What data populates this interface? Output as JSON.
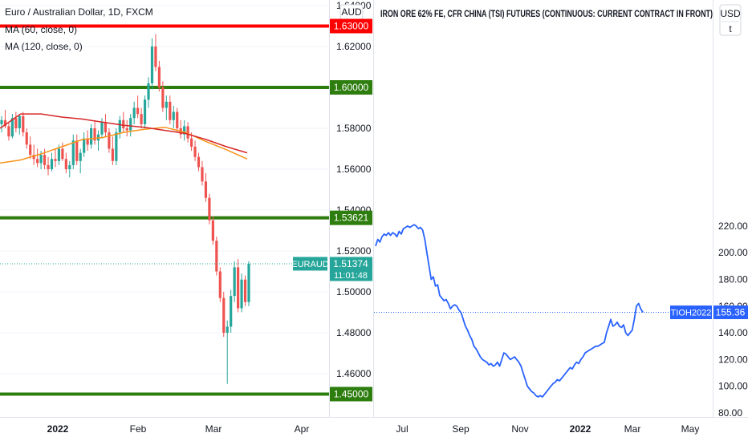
{
  "chart_data": [
    {
      "type": "candlestick",
      "title": "Euro / Australian Dollar, 1D, FXCM",
      "indicators": [
        "MA (60, close, 0)",
        "MA (120, close, 0)"
      ],
      "currency": "AUD",
      "ylim": [
        1.447,
        1.6415
      ],
      "y_ticks": [
        "1.46000",
        "1.48000",
        "1.50000",
        "1.52000",
        "1.54000",
        "1.56000",
        "1.58000",
        "1.60000",
        "1.62000",
        "1.64000"
      ],
      "x_ticks": [
        "2022",
        "Feb",
        "Mar",
        "Apr"
      ],
      "symbol": "EURAUD",
      "last_price": "1.51374",
      "countdown": "11:01:48",
      "levels": [
        {
          "value": 1.63,
          "label": "1.63000",
          "color": "#ff0000"
        },
        {
          "value": 1.6,
          "label": "1.60000",
          "color": "#2e7d0f"
        },
        {
          "value": 1.53621,
          "label": "1.53621",
          "color": "#2e7d0f"
        },
        {
          "value": 1.45,
          "label": "1.45000",
          "color": "#2e7d0f"
        }
      ],
      "series": [
        {
          "name": "MA (60, close, 0)",
          "color": "#f7931a",
          "values": [
            1.563,
            1.5645,
            1.5675,
            1.571,
            1.5745,
            1.5755,
            1.578,
            1.5795,
            1.5805,
            1.578,
            1.5735,
            1.5695,
            1.565
          ]
        },
        {
          "name": "MA (120, close, 0)",
          "color": "#d62728",
          "values": [
            1.58,
            1.587,
            1.587,
            1.5855,
            1.5845,
            1.583,
            1.5815,
            1.5805,
            1.579,
            1.5775,
            1.5745,
            1.571,
            1.568
          ]
        }
      ],
      "candles": [
        [
          1.582,
          1.586,
          1.578,
          1.584
        ],
        [
          1.584,
          1.589,
          1.58,
          1.581
        ],
        [
          1.581,
          1.583,
          1.574,
          1.576
        ],
        [
          1.576,
          1.587,
          1.575,
          1.585
        ],
        [
          1.585,
          1.588,
          1.578,
          1.58
        ],
        [
          1.58,
          1.587,
          1.577,
          1.586
        ],
        [
          1.586,
          1.588,
          1.576,
          1.578
        ],
        [
          1.578,
          1.58,
          1.57,
          1.572
        ],
        [
          1.572,
          1.576,
          1.565,
          1.567
        ],
        [
          1.567,
          1.572,
          1.562,
          1.565
        ],
        [
          1.565,
          1.57,
          1.561,
          1.563
        ],
        [
          1.563,
          1.569,
          1.56,
          1.567
        ],
        [
          1.567,
          1.57,
          1.56,
          1.562
        ],
        [
          1.562,
          1.566,
          1.557,
          1.56
        ],
        [
          1.56,
          1.568,
          1.559,
          1.565
        ],
        [
          1.565,
          1.57,
          1.561,
          1.564
        ],
        [
          1.564,
          1.572,
          1.562,
          1.57
        ],
        [
          1.57,
          1.573,
          1.564,
          1.565
        ],
        [
          1.565,
          1.568,
          1.558,
          1.56
        ],
        [
          1.56,
          1.564,
          1.556,
          1.562
        ],
        [
          1.562,
          1.577,
          1.56,
          1.574
        ],
        [
          1.574,
          1.577,
          1.562,
          1.564
        ],
        [
          1.564,
          1.57,
          1.558,
          1.568
        ],
        [
          1.568,
          1.578,
          1.566,
          1.575
        ],
        [
          1.575,
          1.579,
          1.569,
          1.572
        ],
        [
          1.572,
          1.582,
          1.57,
          1.58
        ],
        [
          1.58,
          1.584,
          1.572,
          1.574
        ],
        [
          1.574,
          1.579,
          1.569,
          1.577
        ],
        [
          1.577,
          1.585,
          1.575,
          1.583
        ],
        [
          1.583,
          1.587,
          1.576,
          1.578
        ],
        [
          1.578,
          1.58,
          1.568,
          1.57
        ],
        [
          1.57,
          1.576,
          1.562,
          1.564
        ],
        [
          1.564,
          1.58,
          1.562,
          1.578
        ],
        [
          1.578,
          1.586,
          1.575,
          1.584
        ],
        [
          1.584,
          1.588,
          1.578,
          1.58
        ],
        [
          1.58,
          1.584,
          1.576,
          1.579
        ],
        [
          1.579,
          1.587,
          1.576,
          1.585
        ],
        [
          1.585,
          1.593,
          1.582,
          1.59
        ],
        [
          1.59,
          1.596,
          1.585,
          1.587
        ],
        [
          1.587,
          1.59,
          1.58,
          1.582
        ],
        [
          1.582,
          1.596,
          1.58,
          1.594
        ],
        [
          1.594,
          1.605,
          1.59,
          1.602
        ],
        [
          1.602,
          1.624,
          1.599,
          1.62
        ],
        [
          1.62,
          1.626,
          1.608,
          1.61
        ],
        [
          1.61,
          1.613,
          1.598,
          1.6
        ],
        [
          1.6,
          1.603,
          1.588,
          1.59
        ],
        [
          1.59,
          1.596,
          1.584,
          1.593
        ],
        [
          1.593,
          1.596,
          1.582,
          1.584
        ],
        [
          1.584,
          1.591,
          1.58,
          1.588
        ],
        [
          1.588,
          1.59,
          1.578,
          1.58
        ],
        [
          1.58,
          1.584,
          1.575,
          1.577
        ],
        [
          1.577,
          1.584,
          1.574,
          1.581
        ],
        [
          1.581,
          1.583,
          1.573,
          1.575
        ],
        [
          1.575,
          1.578,
          1.569,
          1.571
        ],
        [
          1.571,
          1.574,
          1.564,
          1.566
        ],
        [
          1.566,
          1.568,
          1.559,
          1.561
        ],
        [
          1.561,
          1.564,
          1.552,
          1.554
        ],
        [
          1.554,
          1.558,
          1.544,
          1.546
        ],
        [
          1.546,
          1.548,
          1.533,
          1.535
        ],
        [
          1.535,
          1.537,
          1.523,
          1.525
        ],
        [
          1.525,
          1.527,
          1.508,
          1.51
        ],
        [
          1.51,
          1.512,
          1.495,
          1.497
        ],
        [
          1.497,
          1.5,
          1.478,
          1.48
        ],
        [
          1.48,
          1.486,
          1.455,
          1.483
        ],
        [
          1.483,
          1.501,
          1.48,
          1.498
        ],
        [
          1.498,
          1.515,
          1.495,
          1.512
        ],
        [
          1.512,
          1.516,
          1.49,
          1.492
        ],
        [
          1.492,
          1.509,
          1.49,
          1.506
        ],
        [
          1.506,
          1.508,
          1.493,
          1.495
        ],
        [
          1.495,
          1.515,
          1.493,
          1.5137
        ]
      ]
    },
    {
      "type": "line",
      "title": "IRON ORE 62% FE, CFR CHINA (TSI) FUTURES (CONTINUOUS: CURRENT CONTRACT IN FRONT)",
      "currency": "USD",
      "currency_sub": "t",
      "ylim": [
        79,
        226
      ],
      "y_ticks": [
        "80.00",
        "100.00",
        "120.00",
        "140.00",
        "160.00",
        "180.00",
        "200.00",
        "220.00"
      ],
      "x_ticks": [
        "Jul",
        "Sep",
        "Nov",
        "2022",
        "Mar",
        "May"
      ],
      "symbol": "TIOH2022",
      "last_price": "155.36",
      "series": [
        {
          "color": "#2962ff",
          "values": [
            205,
            210,
            208,
            212,
            214,
            213,
            215,
            213,
            215,
            214,
            212,
            216,
            214,
            218,
            219,
            220,
            219,
            220,
            221,
            220,
            218,
            219,
            217,
            210,
            200,
            190,
            180,
            182,
            175,
            176,
            168,
            166,
            164,
            165,
            162,
            158,
            160,
            161,
            160,
            157,
            155,
            150,
            145,
            142,
            138,
            135,
            130,
            128,
            125,
            122,
            120,
            119,
            118,
            116,
            117,
            115,
            116,
            118,
            115,
            120,
            125,
            124,
            122,
            120,
            121,
            122,
            120,
            118,
            115,
            110,
            105,
            100,
            98,
            96,
            95,
            93,
            92,
            93,
            92,
            94,
            96,
            98,
            100,
            102,
            103,
            105,
            104,
            106,
            108,
            110,
            112,
            114,
            113,
            116,
            118,
            117,
            120,
            122,
            125,
            126,
            127,
            128,
            129,
            130,
            130,
            131,
            132,
            133,
            140,
            145,
            150,
            145,
            146,
            148,
            145,
            144,
            146,
            140,
            138,
            140,
            142,
            150,
            160,
            162,
            158,
            155.36
          ]
        }
      ]
    }
  ]
}
